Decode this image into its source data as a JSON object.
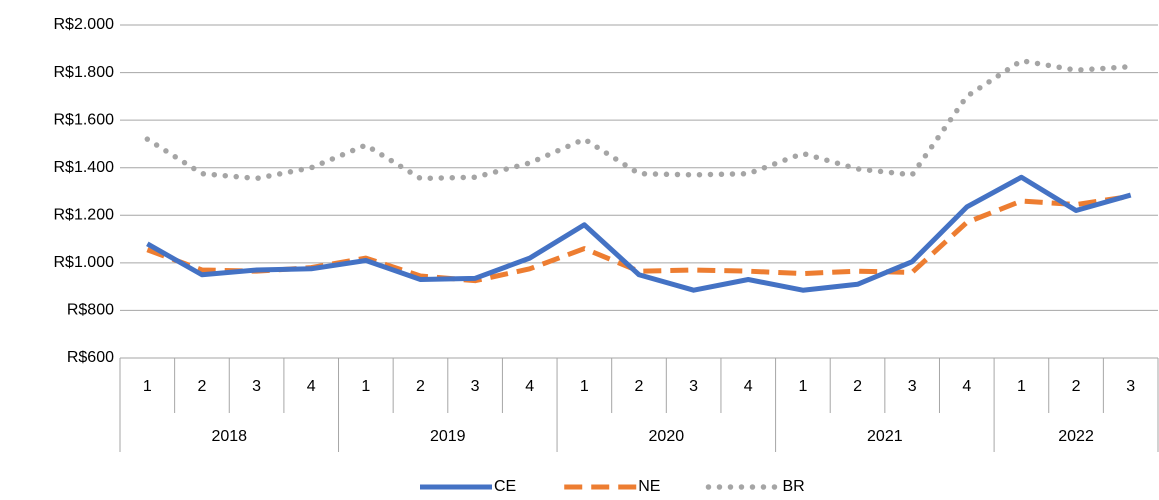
{
  "chart_data": {
    "type": "line",
    "categories": [
      "1",
      "2",
      "3",
      "4",
      "1",
      "2",
      "3",
      "4",
      "1",
      "2",
      "3",
      "4",
      "1",
      "2",
      "3",
      "4",
      "1",
      "2",
      "3"
    ],
    "category_groups": [
      "2018",
      "2019",
      "2020",
      "2021",
      "2022"
    ],
    "series": [
      {
        "name": "CE",
        "color": "#4472c4",
        "dash": "solid",
        "values": [
          1080,
          950,
          970,
          975,
          1010,
          930,
          935,
          1020,
          1160,
          950,
          885,
          930,
          885,
          910,
          1005,
          1235,
          1360,
          1220,
          1285
        ]
      },
      {
        "name": "NE",
        "color": "#ed7d31",
        "dash": "dashed",
        "values": [
          1055,
          970,
          965,
          980,
          1020,
          945,
          925,
          975,
          1060,
          965,
          970,
          965,
          955,
          965,
          960,
          1170,
          1260,
          1245,
          1280
        ]
      },
      {
        "name": "BR",
        "color": "#a5a5a5",
        "dash": "dotted",
        "values": [
          1520,
          1375,
          1355,
          1400,
          1495,
          1355,
          1360,
          1420,
          1520,
          1375,
          1370,
          1375,
          1460,
          1395,
          1370,
          1700,
          1850,
          1810,
          1825
        ]
      }
    ],
    "ylim": [
      600,
      2000
    ],
    "yticks": [
      {
        "value": 600,
        "label": "R$600"
      },
      {
        "value": 800,
        "label": "R$800"
      },
      {
        "value": 1000,
        "label": "R$1.000"
      },
      {
        "value": 1200,
        "label": "R$1.200"
      },
      {
        "value": 1400,
        "label": "R$1.400"
      },
      {
        "value": 1600,
        "label": "R$1.600"
      },
      {
        "value": 1800,
        "label": "R$1.800"
      },
      {
        "value": 2000,
        "label": "R$2.000"
      }
    ],
    "grid": true,
    "legend": "bottom"
  }
}
